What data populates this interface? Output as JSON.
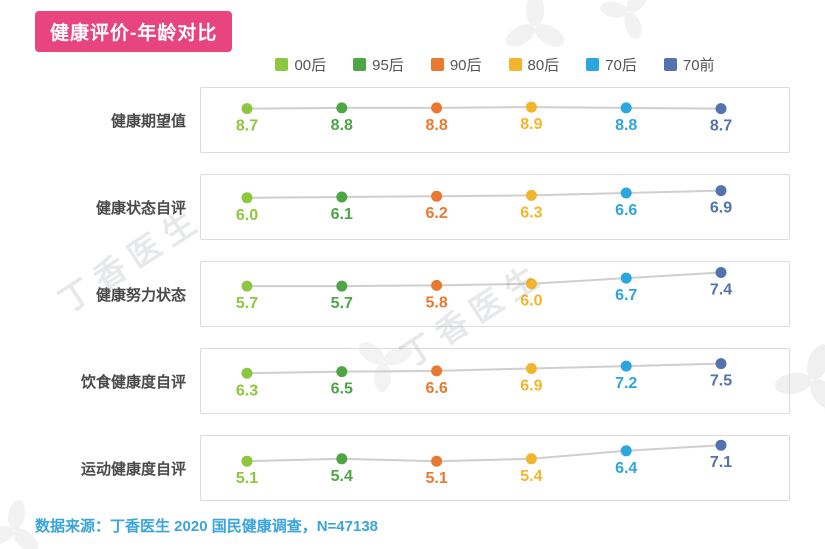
{
  "title": "健康评价-年龄对比",
  "legend": [
    {
      "label": "00后",
      "color": "#8DC63F"
    },
    {
      "label": "95后",
      "color": "#4EA546"
    },
    {
      "label": "90后",
      "color": "#E8792F"
    },
    {
      "label": "80后",
      "color": "#F2B52C"
    },
    {
      "label": "70后",
      "color": "#2BA6DE"
    },
    {
      "label": "70前",
      "color": "#5273AE"
    }
  ],
  "chart_data": {
    "type": "line",
    "categories": [
      "00后",
      "95后",
      "90后",
      "80后",
      "70后",
      "70前"
    ],
    "line_color": "#cfcfcf",
    "rows": [
      {
        "label": "健康期望值",
        "values": [
          8.7,
          8.8,
          8.8,
          8.9,
          8.8,
          8.7
        ]
      },
      {
        "label": "健康状态自评",
        "values": [
          6.0,
          6.1,
          6.2,
          6.3,
          6.6,
          6.9
        ]
      },
      {
        "label": "健康努力状态",
        "values": [
          5.7,
          5.7,
          5.8,
          6.0,
          6.7,
          7.4
        ]
      },
      {
        "label": "饮食健康度自评",
        "values": [
          6.3,
          6.5,
          6.6,
          6.9,
          7.2,
          7.5
        ]
      },
      {
        "label": "运动健康度自评",
        "values": [
          5.1,
          5.4,
          5.1,
          5.4,
          6.4,
          7.1
        ]
      }
    ]
  },
  "watermark": "丁香医生",
  "footer": "数据来源：丁香医生 2020 国民健康调查，N=47138"
}
